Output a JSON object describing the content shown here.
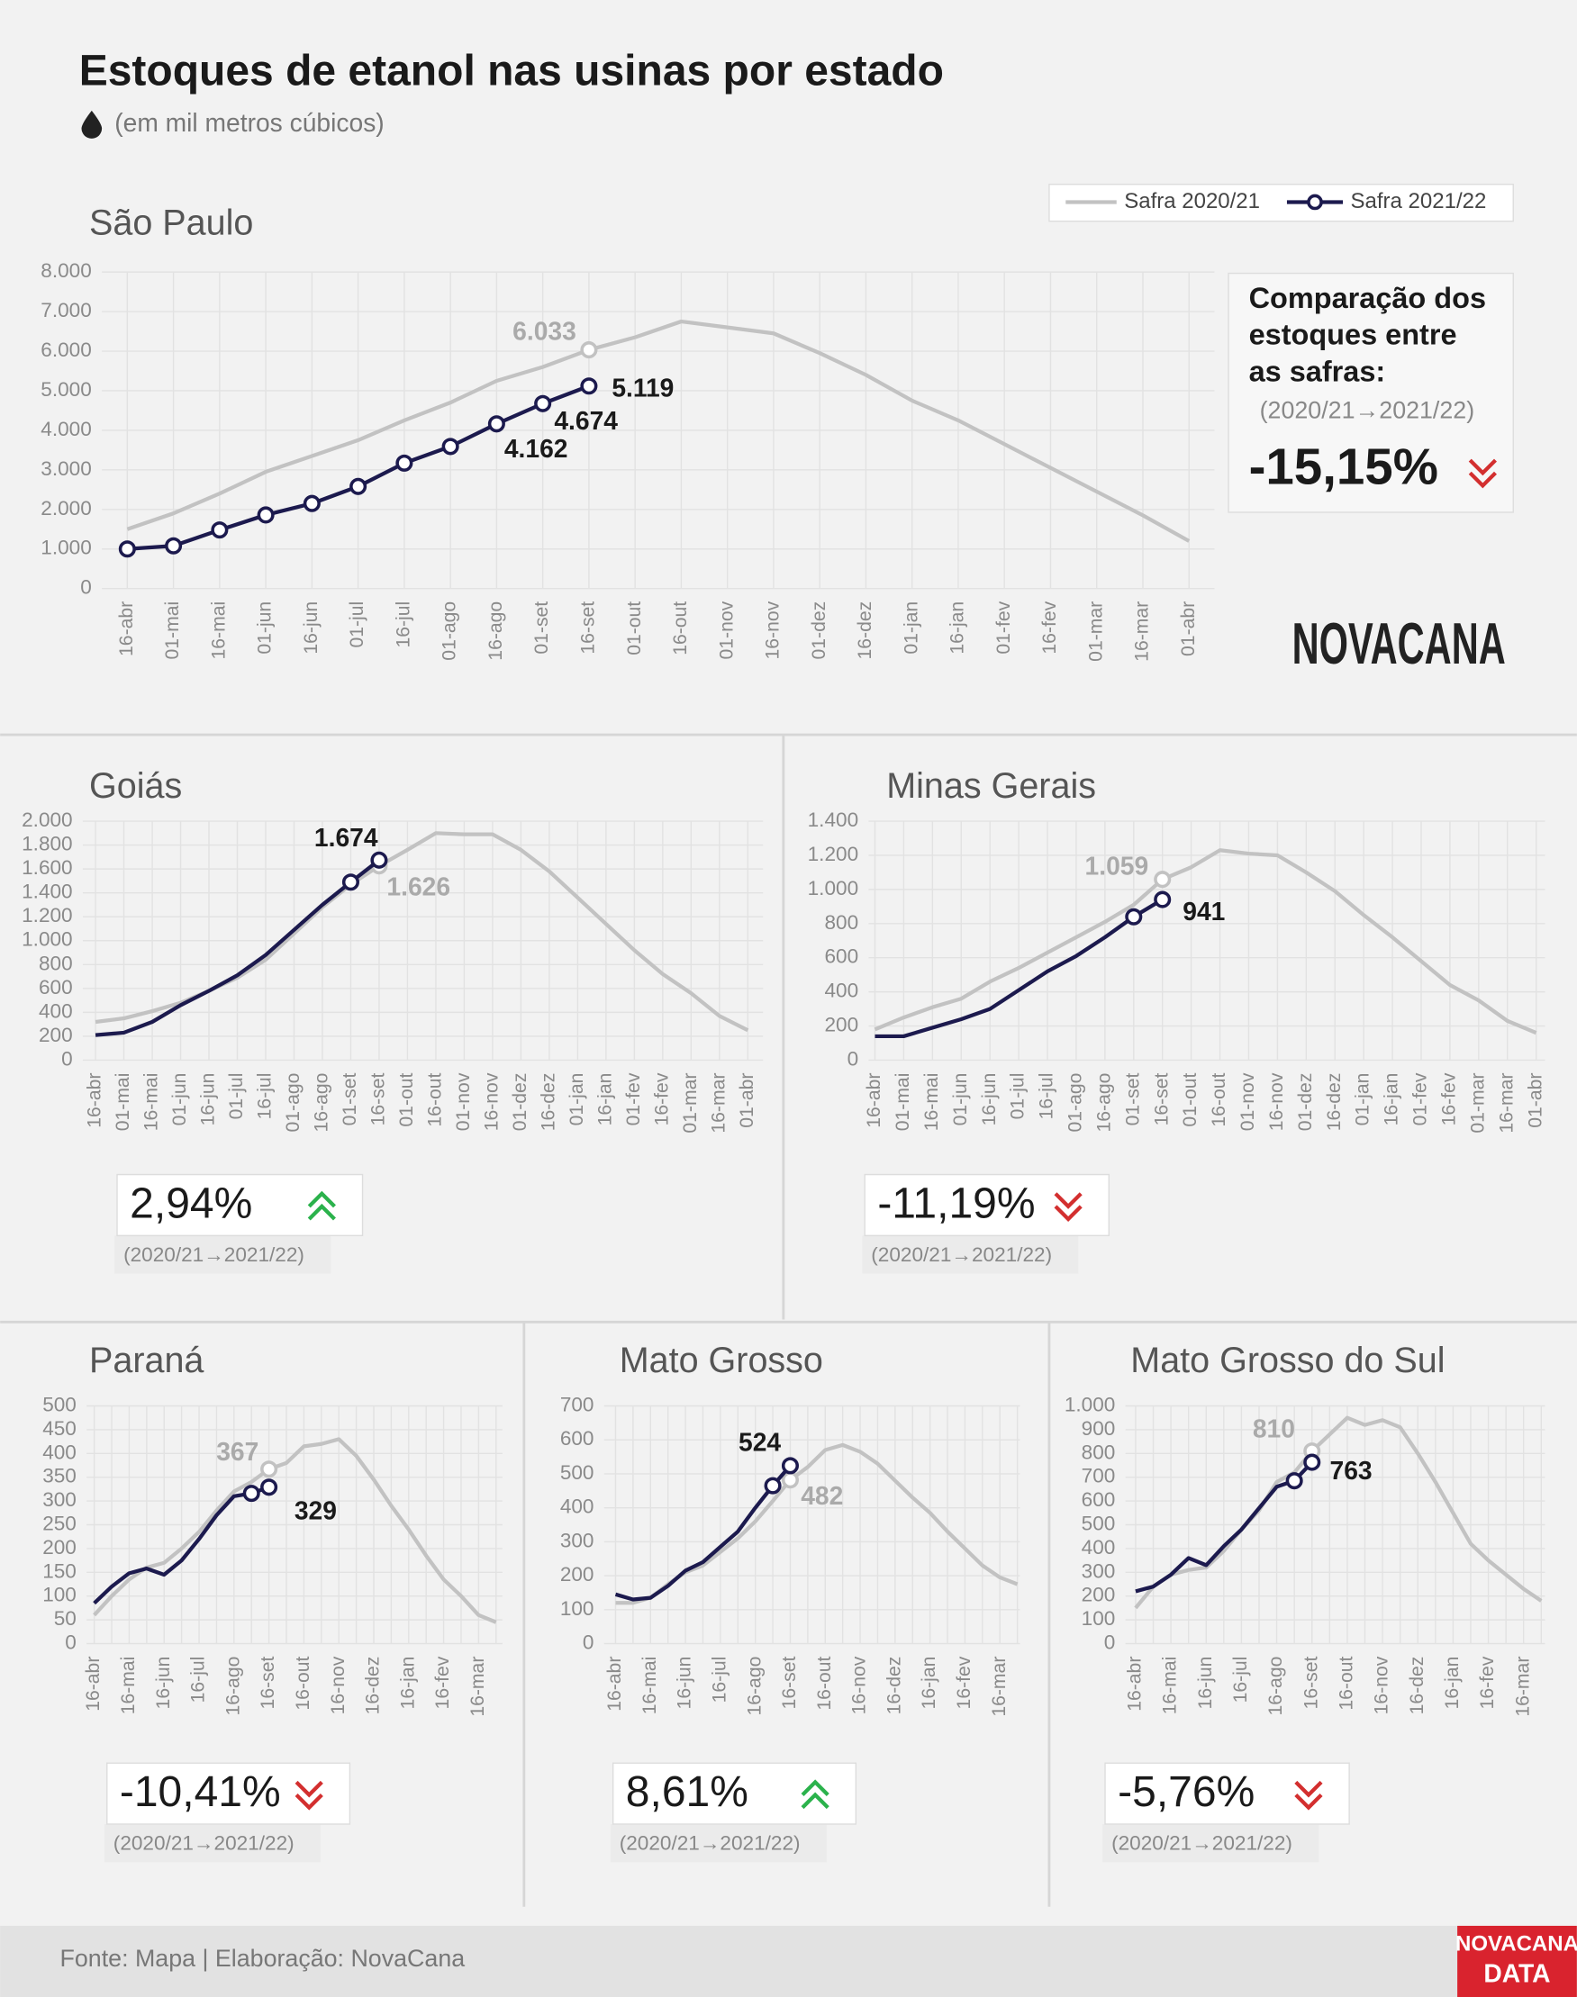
{
  "title": "Estoques de etanol nas usinas por estado",
  "subtitle": "(em mil metros cúbicos)",
  "source": "Fonte: Mapa | Elaboração: NovaCana",
  "logos": [
    "NOVACANA",
    "NOVACANA",
    "DATA"
  ],
  "chart_data": [
    {
      "type": "line",
      "title": "São Paulo",
      "categories": [
        "16-abr",
        "01-mai",
        "16-mai",
        "01-jun",
        "16-jun",
        "01-jul",
        "16-jul",
        "01-ago",
        "16-ago",
        "01-set",
        "16-set",
        "01-out",
        "16-out",
        "01-nov",
        "16-nov",
        "01-dez",
        "16-dez",
        "01-jan",
        "16-jan",
        "01-fev",
        "16-fev",
        "01-mar",
        "16-mar",
        "01-abr"
      ],
      "series": [
        {
          "name": "Safra 2020/21",
          "color": "#c2c2c2",
          "values": [
            1500,
            1900,
            2400,
            2950,
            3350,
            3750,
            4250,
            4700,
            5250,
            5600,
            6033,
            6350,
            6750,
            6600,
            6450,
            5950,
            5400,
            4750,
            4250,
            3650,
            3050,
            2450,
            1850,
            1200
          ],
          "value_labels": [
            null,
            null,
            null,
            null,
            null,
            null,
            null,
            null,
            null,
            null,
            "6.033",
            null,
            null,
            null,
            null,
            null,
            null,
            null,
            null,
            null,
            null,
            null,
            null,
            null
          ]
        },
        {
          "name": "Safra 2021/22",
          "color": "#1c1a4e",
          "values": [
            1000,
            1080,
            1480,
            1860,
            2150,
            2580,
            3170,
            3590,
            4162,
            4674,
            5119,
            null,
            null,
            null,
            null,
            null,
            null,
            null,
            null,
            null,
            null,
            null,
            null,
            null
          ],
          "value_labels": [
            null,
            null,
            null,
            null,
            null,
            null,
            null,
            null,
            "4.162",
            "4.674",
            "5.119",
            null,
            null,
            null,
            null,
            null,
            null,
            null,
            null,
            null,
            null,
            null,
            null,
            null
          ]
        }
      ],
      "ylim": [
        0,
        8000
      ],
      "yticks": [
        0,
        {
          "value": 1000,
          "label": "1.000"
        },
        {
          "value": 2000,
          "label": "2.000"
        },
        {
          "value": 3000,
          "label": "3.000"
        },
        {
          "value": 4000,
          "label": "4.000"
        },
        {
          "value": 5000,
          "label": "5.000"
        },
        {
          "value": 6000,
          "label": "6.000"
        },
        {
          "value": 7000,
          "label": "7.000"
        },
        {
          "value": 8000,
          "label": "8.000"
        }
      ],
      "grid": true,
      "comparison": {
        "heading": [
          "Comparação dos",
          "estoques entre",
          "as safras:"
        ],
        "label": "-15,15%",
        "period": "(2020/21→2021/22)",
        "trend": "down"
      }
    },
    {
      "type": "line",
      "title": "Goiás",
      "categories": [
        "16-abr",
        "01-mai",
        "16-mai",
        "01-jun",
        "16-jun",
        "01-jul",
        "16-jul",
        "01-ago",
        "16-ago",
        "01-set",
        "16-set",
        "01-out",
        "16-out",
        "01-nov",
        "16-nov",
        "01-dez",
        "16-dez",
        "01-jan",
        "16-jan",
        "01-fev",
        "16-fev",
        "01-mar",
        "16-mar",
        "01-abr"
      ],
      "series": [
        {
          "color": "#c2c2c2",
          "values": [
            320,
            350,
            410,
            480,
            580,
            690,
            840,
            1060,
            1280,
            1470,
            1626,
            1760,
            1900,
            1890,
            1890,
            1760,
            1580,
            1360,
            1140,
            920,
            720,
            560,
            370,
            250
          ],
          "value_labels": [
            null,
            null,
            null,
            null,
            null,
            null,
            null,
            null,
            null,
            null,
            "1.626",
            null,
            null,
            null,
            null,
            null,
            null,
            null,
            null,
            null,
            null,
            null,
            null,
            null
          ]
        },
        {
          "color": "#1c1a4e",
          "values": [
            210,
            230,
            320,
            460,
            580,
            710,
            880,
            1090,
            1300,
            1490,
            1674,
            null,
            null,
            null,
            null,
            null,
            null,
            null,
            null,
            null,
            null,
            null,
            null,
            null
          ],
          "value_labels": [
            null,
            null,
            null,
            null,
            null,
            null,
            null,
            null,
            null,
            null,
            "1.674",
            null,
            null,
            null,
            null,
            null,
            null,
            null,
            null,
            null,
            null,
            null,
            null,
            null
          ]
        }
      ],
      "ylim": [
        0,
        2000
      ],
      "yticks": [
        0,
        200,
        400,
        600,
        800,
        {
          "value": 1000,
          "label": "1.000"
        },
        {
          "value": 1200,
          "label": "1.200"
        },
        {
          "value": 1400,
          "label": "1.400"
        },
        {
          "value": 1600,
          "label": "1.600"
        },
        {
          "value": 1800,
          "label": "1.800"
        },
        {
          "value": 2000,
          "label": "2.000"
        }
      ],
      "grid": true,
      "comparison": {
        "label": "2,94%",
        "period": "(2020/21→2021/22)",
        "trend": "up"
      }
    },
    {
      "type": "line",
      "title": "Minas Gerais",
      "categories": [
        "16-abr",
        "01-mai",
        "16-mai",
        "01-jun",
        "16-jun",
        "01-jul",
        "16-jul",
        "01-ago",
        "16-ago",
        "01-set",
        "16-set",
        "01-out",
        "16-out",
        "01-nov",
        "16-nov",
        "01-dez",
        "16-dez",
        "01-jan",
        "16-jan",
        "01-fev",
        "16-fev",
        "01-mar",
        "16-mar",
        "01-abr"
      ],
      "series": [
        {
          "color": "#c2c2c2",
          "values": [
            180,
            250,
            310,
            360,
            460,
            540,
            630,
            720,
            810,
            910,
            1059,
            1130,
            1230,
            1210,
            1200,
            1100,
            990,
            850,
            720,
            580,
            440,
            350,
            230,
            160
          ],
          "value_labels": [
            null,
            null,
            null,
            null,
            null,
            null,
            null,
            null,
            null,
            null,
            "1.059",
            null,
            null,
            null,
            null,
            null,
            null,
            null,
            null,
            null,
            null,
            null,
            null,
            null
          ]
        },
        {
          "color": "#1c1a4e",
          "values": [
            140,
            140,
            190,
            240,
            300,
            410,
            520,
            610,
            720,
            840,
            941,
            null,
            null,
            null,
            null,
            null,
            null,
            null,
            null,
            null,
            null,
            null,
            null,
            null
          ],
          "value_labels": [
            null,
            null,
            null,
            null,
            null,
            null,
            null,
            null,
            null,
            null,
            "941",
            null,
            null,
            null,
            null,
            null,
            null,
            null,
            null,
            null,
            null,
            null,
            null,
            null
          ]
        }
      ],
      "ylim": [
        0,
        1400
      ],
      "yticks": [
        0,
        200,
        400,
        600,
        800,
        {
          "value": 1000,
          "label": "1.000"
        },
        {
          "value": 1200,
          "label": "1.200"
        },
        {
          "value": 1400,
          "label": "1.400"
        }
      ],
      "grid": true,
      "comparison": {
        "label": "-11,19%",
        "period": "(2020/21→2021/22)",
        "trend": "down"
      }
    },
    {
      "type": "line",
      "title": "Paraná",
      "categories": [
        "16-abr",
        null,
        "16-mai",
        null,
        "16-jun",
        null,
        "16-jul",
        null,
        "16-ago",
        null,
        "16-set",
        null,
        "16-out",
        null,
        "16-nov",
        null,
        "16-dez",
        null,
        "16-jan",
        null,
        "16-fev",
        null,
        "16-mar",
        null
      ],
      "series": [
        {
          "color": "#c2c2c2",
          "values": [
            60,
            100,
            135,
            160,
            170,
            200,
            235,
            280,
            320,
            340,
            367,
            380,
            415,
            420,
            430,
            395,
            345,
            290,
            240,
            185,
            135,
            100,
            60,
            45
          ],
          "value_labels": [
            null,
            null,
            null,
            null,
            null,
            null,
            null,
            null,
            null,
            null,
            "367",
            null,
            null,
            null,
            null,
            null,
            null,
            null,
            null,
            null,
            null,
            null,
            null,
            null
          ]
        },
        {
          "color": "#1c1a4e",
          "values": [
            85,
            120,
            148,
            158,
            145,
            175,
            220,
            270,
            310,
            316,
            329,
            null,
            null,
            null,
            null,
            null,
            null,
            null,
            null,
            null,
            null,
            null,
            null,
            null
          ],
          "value_labels": [
            null,
            null,
            null,
            null,
            null,
            null,
            null,
            null,
            null,
            null,
            "329",
            null,
            null,
            null,
            null,
            null,
            null,
            null,
            null,
            null,
            null,
            null,
            null,
            null
          ]
        }
      ],
      "ylim": [
        0,
        500
      ],
      "yticks": [
        0,
        50,
        100,
        150,
        200,
        250,
        300,
        350,
        400,
        450,
        500
      ],
      "grid": true,
      "comparison": {
        "label": "-10,41%",
        "period": "(2020/21→2021/22)",
        "trend": "down"
      }
    },
    {
      "type": "line",
      "title": "Mato Grosso",
      "categories": [
        "16-abr",
        null,
        "16-mai",
        null,
        "16-jun",
        null,
        "16-jul",
        null,
        "16-ago",
        null,
        "16-set",
        null,
        "16-out",
        null,
        "16-nov",
        null,
        "16-dez",
        null,
        "16-jan",
        null,
        "16-fev",
        null,
        "16-mar",
        null
      ],
      "series": [
        {
          "color": "#c2c2c2",
          "values": [
            120,
            120,
            135,
            175,
            210,
            230,
            270,
            310,
            360,
            420,
            482,
            520,
            570,
            585,
            565,
            530,
            480,
            430,
            385,
            330,
            280,
            230,
            195,
            175
          ],
          "value_labels": [
            null,
            null,
            null,
            null,
            null,
            null,
            null,
            null,
            null,
            null,
            "482",
            null,
            null,
            null,
            null,
            null,
            null,
            null,
            null,
            null,
            null,
            null,
            null,
            null
          ]
        },
        {
          "color": "#1c1a4e",
          "values": [
            145,
            130,
            135,
            170,
            215,
            240,
            285,
            330,
            400,
            465,
            524,
            null,
            null,
            null,
            null,
            null,
            null,
            null,
            null,
            null,
            null,
            null,
            null,
            null
          ],
          "value_labels": [
            null,
            null,
            null,
            null,
            null,
            null,
            null,
            null,
            null,
            null,
            "524",
            null,
            null,
            null,
            null,
            null,
            null,
            null,
            null,
            null,
            null,
            null,
            null,
            null
          ]
        }
      ],
      "ylim": [
        0,
        700
      ],
      "yticks": [
        0,
        100,
        200,
        300,
        400,
        500,
        600,
        700
      ],
      "grid": true,
      "comparison": {
        "label": "8,61%",
        "period": "(2020/21→2021/22)",
        "trend": "up"
      }
    },
    {
      "type": "line",
      "title": "Mato Grosso do Sul",
      "categories": [
        "16-abr",
        null,
        "16-mai",
        null,
        "16-jun",
        null,
        "16-jul",
        null,
        "16-ago",
        null,
        "16-set",
        null,
        "16-out",
        null,
        "16-nov",
        null,
        "16-dez",
        null,
        "16-jan",
        null,
        "16-fev",
        null,
        "16-mar",
        null
      ],
      "series": [
        {
          "color": "#c2c2c2",
          "values": [
            150,
            240,
            290,
            310,
            320,
            390,
            480,
            560,
            680,
            720,
            810,
            880,
            950,
            920,
            940,
            910,
            800,
            680,
            550,
            420,
            350,
            290,
            230,
            180
          ],
          "value_labels": [
            null,
            null,
            null,
            null,
            null,
            null,
            null,
            null,
            null,
            null,
            "810",
            null,
            null,
            null,
            null,
            null,
            null,
            null,
            null,
            null,
            null,
            null,
            null,
            null
          ]
        },
        {
          "color": "#1c1a4e",
          "values": [
            220,
            240,
            290,
            360,
            330,
            410,
            480,
            570,
            660,
            685,
            763,
            null,
            null,
            null,
            null,
            null,
            null,
            null,
            null,
            null,
            null,
            null,
            null,
            null
          ],
          "value_labels": [
            null,
            null,
            null,
            null,
            null,
            null,
            null,
            null,
            null,
            null,
            "763",
            null,
            null,
            null,
            null,
            null,
            null,
            null,
            null,
            null,
            null,
            null,
            null,
            null
          ]
        }
      ],
      "ylim": [
        0,
        1000
      ],
      "yticks": [
        0,
        100,
        200,
        300,
        400,
        500,
        600,
        700,
        800,
        900,
        {
          "value": 1000,
          "label": "1.000"
        }
      ],
      "grid": true,
      "comparison": {
        "label": "-5,76%",
        "period": "(2020/21→2021/22)",
        "trend": "down"
      }
    }
  ]
}
